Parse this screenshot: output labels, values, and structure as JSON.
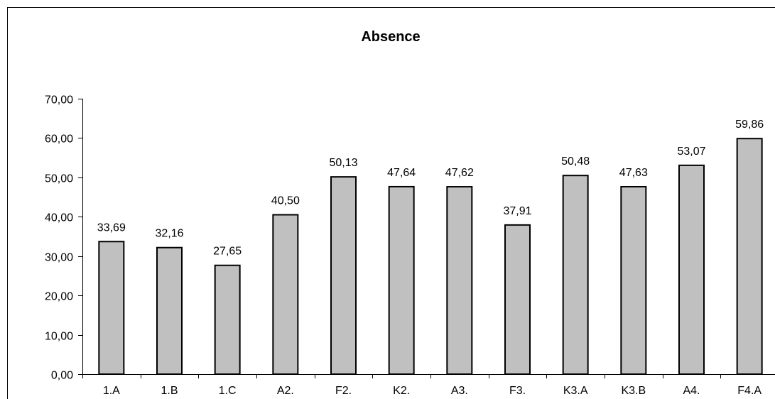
{
  "chart_data": {
    "type": "bar",
    "title": "Absence",
    "xlabel": "",
    "ylabel": "",
    "categories": [
      "1.A",
      "1.B",
      "1.C",
      "A2.",
      "F2.",
      "K2.",
      "A3.",
      "F3.",
      "K3.A",
      "K3.B",
      "A4.",
      "F4.A"
    ],
    "values": [
      33.69,
      32.16,
      27.65,
      40.5,
      50.13,
      47.64,
      47.62,
      37.91,
      50.48,
      47.63,
      53.07,
      59.86
    ],
    "data_labels": [
      "33,69",
      "32,16",
      "27,65",
      "40,50",
      "50,13",
      "47,64",
      "47,62",
      "37,91",
      "50,48",
      "47,63",
      "53,07",
      "59,86"
    ],
    "y_ticks": [
      0,
      10,
      20,
      30,
      40,
      50,
      60,
      70
    ],
    "y_tick_labels": [
      "0,00",
      "10,00",
      "20,00",
      "30,00",
      "40,00",
      "50,00",
      "60,00",
      "70,00"
    ],
    "ylim": [
      0,
      70
    ],
    "grid": false,
    "legend": "none",
    "bar_color": "#c0c0c0",
    "bar_border_color": "#000000"
  }
}
